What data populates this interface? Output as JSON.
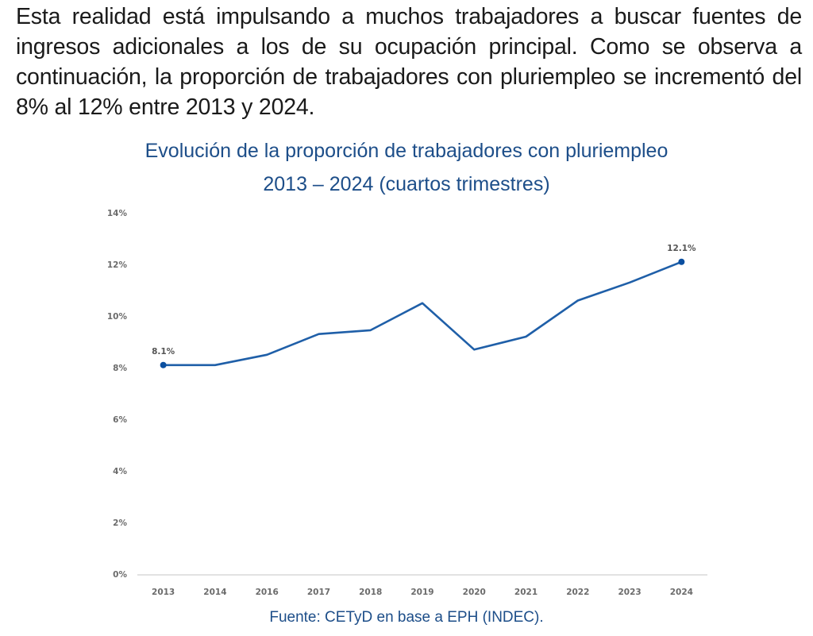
{
  "intro_paragraph": "Esta realidad está impulsando a muchos trabajadores a buscar fuentes de ingresos adicionales a los de su ocupación principal. Como se observa a continuación, la proporción de trabajadores con pluriempleo se incrementó del 8% al 12% entre 2013 y 2024.",
  "source": "Fuente: CETyD en base a EPH (INDEC).",
  "colors": {
    "title": "#1d4e89",
    "line": "#1f5fa8",
    "marker": "#0b4fa0",
    "axis": "#d9d9d9",
    "tick_text": "#6b6b6b"
  },
  "chart_data": {
    "type": "line",
    "title": "Evolución de la proporción de trabajadores con pluriempleo",
    "subtitle": "2013 – 2024 (cuartos trimestres)",
    "xlabel": "",
    "ylabel": "",
    "categories": [
      "2013",
      "2014",
      "2016",
      "2017",
      "2018",
      "2019",
      "2020",
      "2021",
      "2022",
      "2023",
      "2024"
    ],
    "series": [
      {
        "name": "Proporción de trabajadores con pluriempleo",
        "values": [
          8.1,
          8.1,
          8.5,
          9.3,
          9.45,
          10.5,
          8.7,
          9.2,
          10.6,
          11.3,
          12.1
        ]
      }
    ],
    "ylim": [
      0,
      14
    ],
    "yticks": [
      0,
      2,
      4,
      6,
      8,
      10,
      12,
      14
    ],
    "ytick_labels": [
      "0%",
      "2%",
      "4%",
      "6%",
      "8%",
      "10%",
      "12%",
      "14%"
    ],
    "data_labels": [
      {
        "index": 0,
        "text": "8.1%"
      },
      {
        "index": 10,
        "text": "12.1%"
      }
    ],
    "markers_on": [
      0,
      10
    ],
    "grid": false,
    "legend": "none"
  }
}
